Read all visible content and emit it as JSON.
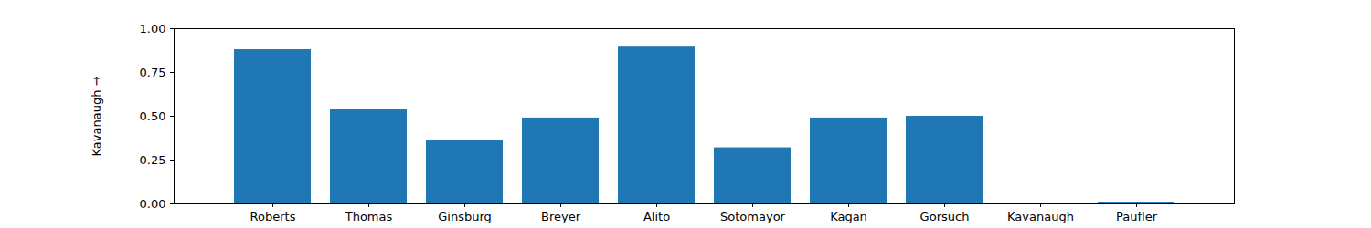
{
  "chart_data": {
    "type": "bar",
    "ylabel": "Kavanaugh",
    "categories": [
      "Roberts",
      "Thomas",
      "Ginsburg",
      "Breyer",
      "Alito",
      "Sotomayor",
      "Kagan",
      "Gorsuch",
      "Kavanaugh",
      "Paufler"
    ],
    "values": [
      0.88,
      0.54,
      0.36,
      0.49,
      0.9,
      0.32,
      0.49,
      0.5,
      0,
      0.005
    ],
    "color": "#1f77b4",
    "ylim": [
      0,
      1
    ],
    "yticks": [
      {
        "value": 0,
        "label": "0.00"
      },
      {
        "value": 0.25,
        "label": "0.25"
      },
      {
        "value": 0.5,
        "label": "0.50"
      },
      {
        "value": 0.75,
        "label": "0.75"
      },
      {
        "value": 1,
        "label": "1.00"
      }
    ],
    "grid": false
  }
}
